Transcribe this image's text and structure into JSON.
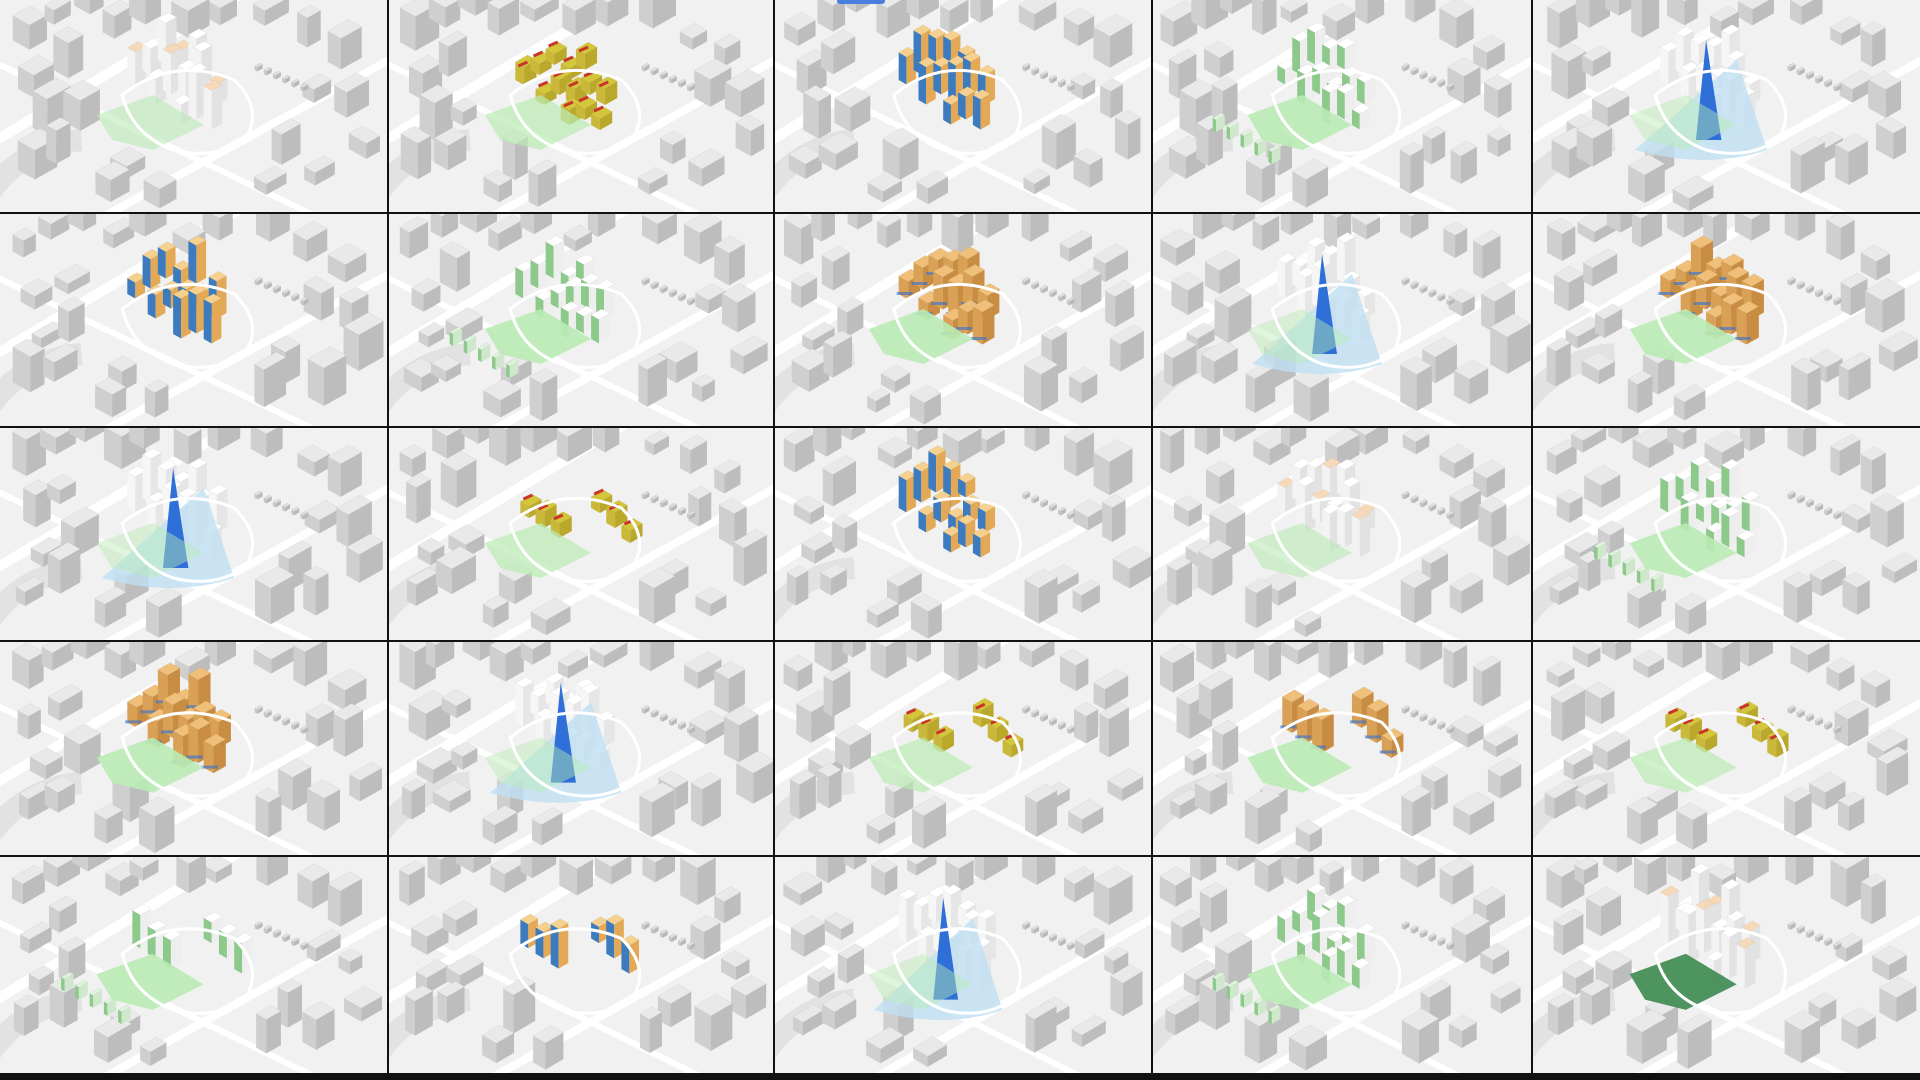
{
  "grid": {
    "rows": 5,
    "columns": 5
  },
  "colors": {
    "background": "#f1f1f1",
    "context_building": "#d4d4d4",
    "context_building_top": "#e9e9e9",
    "site_building": "#ffffff",
    "park_green": "#b9ebb4",
    "facade_green": "#8cc98a",
    "orange_block": "#f0c07a",
    "orange_dark": "#d9a155",
    "yellow_block": "#d4c63a",
    "red_accent": "#c9352b",
    "blue_shadow": "#2f6fd8",
    "light_blue": "#bfe0f2",
    "peach": "#f6d9b8",
    "dark_green": "#3c8a4e",
    "grid_line": "#111111"
  },
  "panels": [
    {
      "style": "peach"
    },
    {
      "style": "yellow-red"
    },
    {
      "style": "mixed-facade"
    },
    {
      "style": "green-facade"
    },
    {
      "style": "blue-shadow"
    },
    {
      "style": "mixed-facade"
    },
    {
      "style": "green-facade"
    },
    {
      "style": "orange-massing"
    },
    {
      "style": "blue-shadow"
    },
    {
      "style": "orange-massing"
    },
    {
      "style": "blue-shadow"
    },
    {
      "style": "yellow-red-split"
    },
    {
      "style": "mixed-facade"
    },
    {
      "style": "peach"
    },
    {
      "style": "green-facade"
    },
    {
      "style": "orange-massing"
    },
    {
      "style": "blue-shadow"
    },
    {
      "style": "yellow-red-split"
    },
    {
      "style": "orange-massing-split"
    },
    {
      "style": "yellow-red-split"
    },
    {
      "style": "green-facade-split"
    },
    {
      "style": "mixed-facade-split"
    },
    {
      "style": "blue-shadow"
    },
    {
      "style": "green-facade"
    },
    {
      "style": "peach-dark"
    }
  ]
}
